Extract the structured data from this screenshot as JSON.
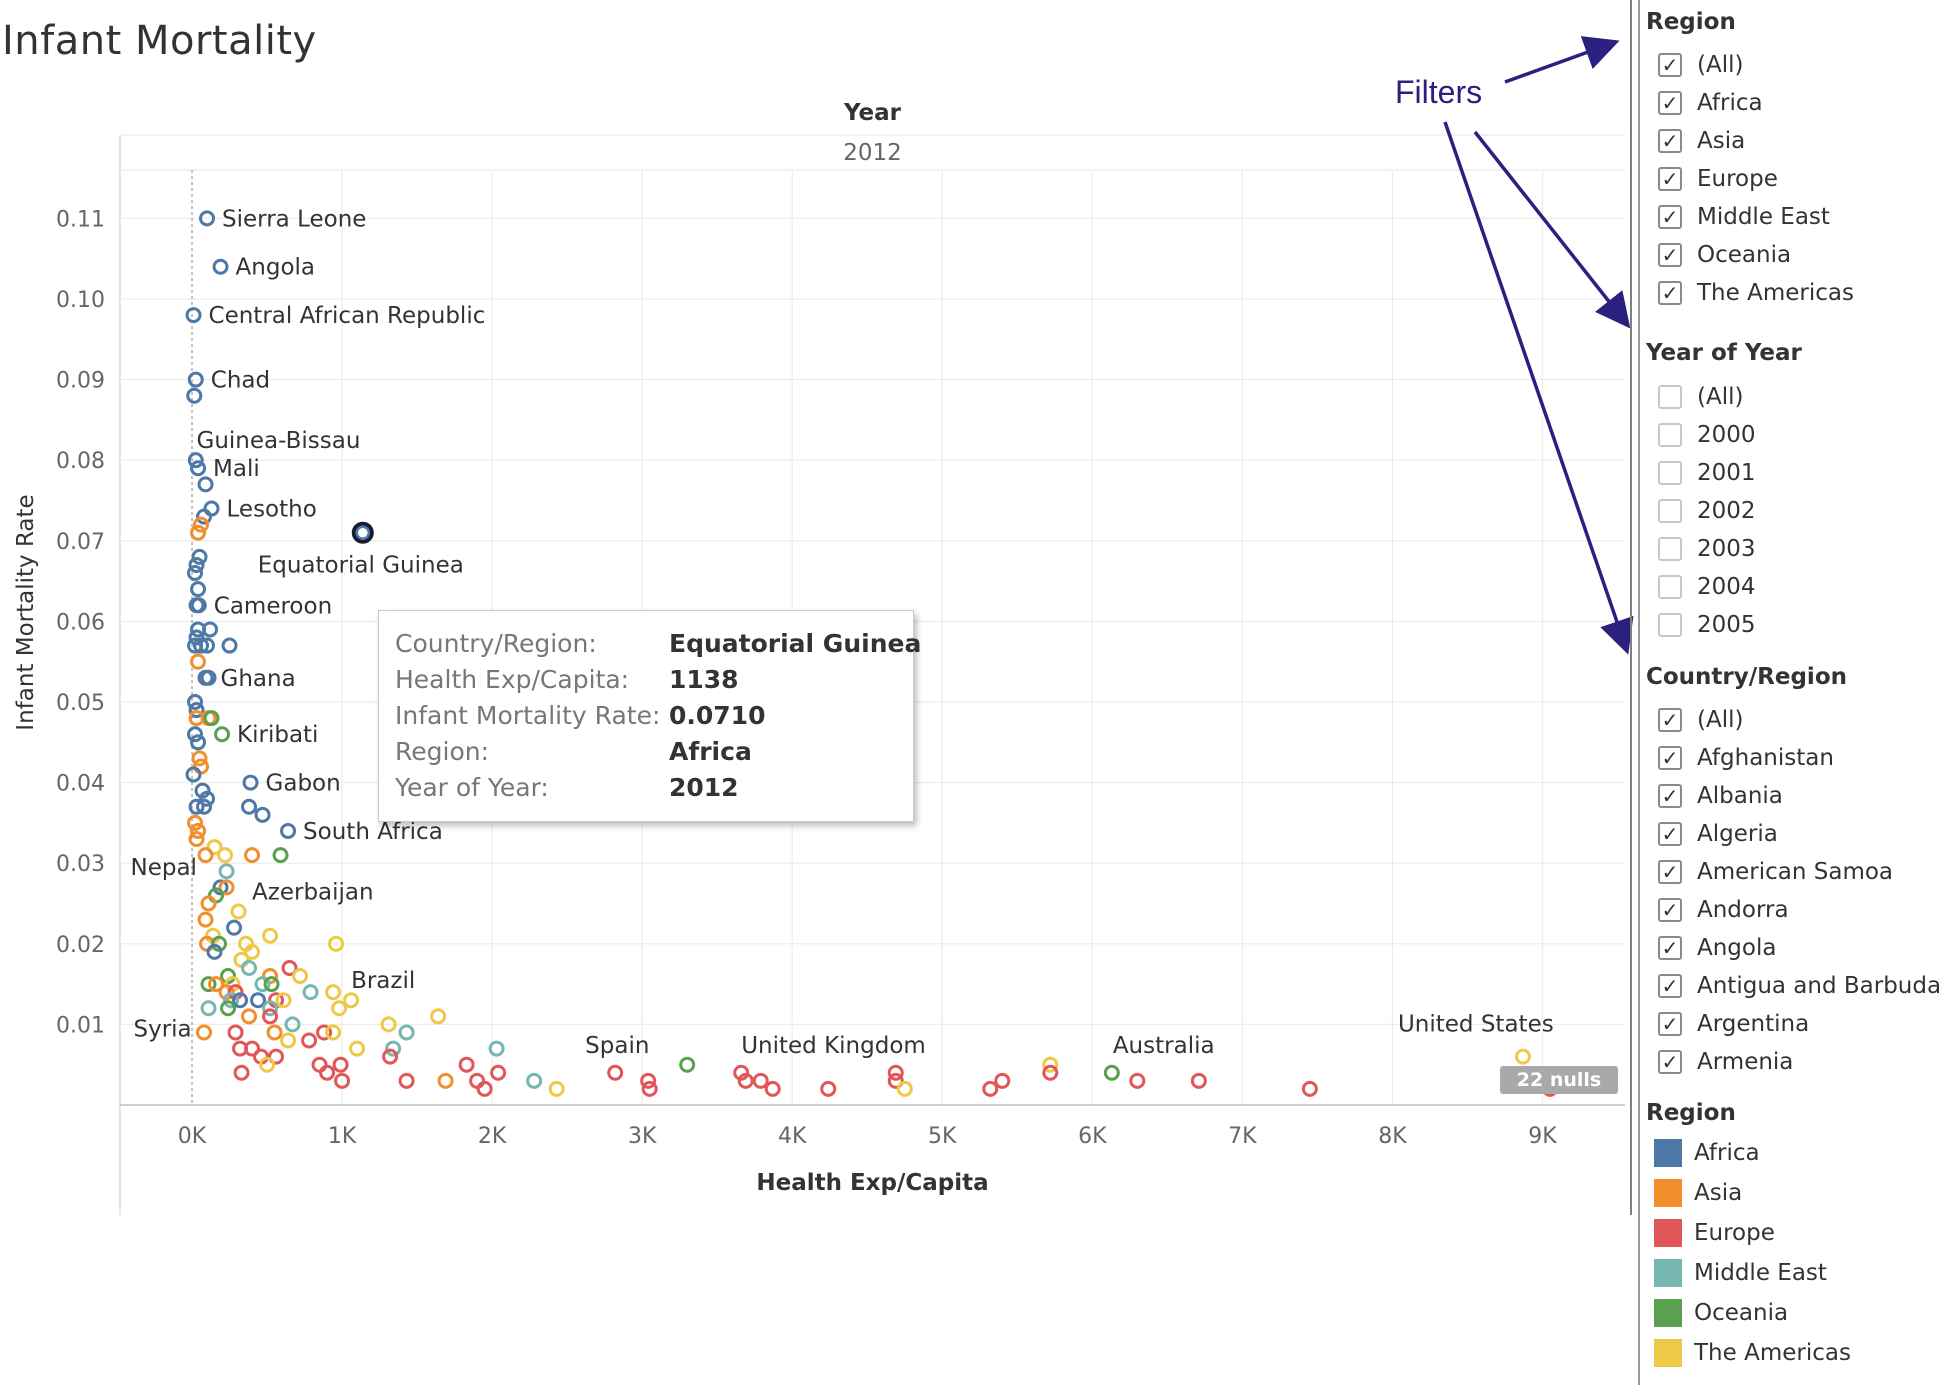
{
  "title": "Infant Mortality",
  "chart_data": {
    "type": "scatter",
    "column_header": "Year",
    "column_value": "2012",
    "xlabel": "Health Exp/Capita",
    "ylabel": "Infant Mortality Rate",
    "xlim": [
      -480,
      9550
    ],
    "ylim": [
      0,
      0.116
    ],
    "x_ticks": [
      {
        "v": 0,
        "label": "0K"
      },
      {
        "v": 1000,
        "label": "1K"
      },
      {
        "v": 2000,
        "label": "2K"
      },
      {
        "v": 3000,
        "label": "3K"
      },
      {
        "v": 4000,
        "label": "4K"
      },
      {
        "v": 5000,
        "label": "5K"
      },
      {
        "v": 6000,
        "label": "6K"
      },
      {
        "v": 7000,
        "label": "7K"
      },
      {
        "v": 8000,
        "label": "8K"
      },
      {
        "v": 9000,
        "label": "9K"
      }
    ],
    "y_ticks": [
      {
        "v": 0.01,
        "label": "0.01"
      },
      {
        "v": 0.02,
        "label": "0.02"
      },
      {
        "v": 0.03,
        "label": "0.03"
      },
      {
        "v": 0.04,
        "label": "0.04"
      },
      {
        "v": 0.05,
        "label": "0.05"
      },
      {
        "v": 0.06,
        "label": "0.06"
      },
      {
        "v": 0.07,
        "label": "0.07"
      },
      {
        "v": 0.08,
        "label": "0.08"
      },
      {
        "v": 0.09,
        "label": "0.09"
      },
      {
        "v": 0.1,
        "label": "0.10"
      },
      {
        "v": 0.11,
        "label": "0.11"
      }
    ],
    "grid": true,
    "marker": "open-circle",
    "series_colors": {
      "Africa": "#4e79a7",
      "Asia": "#f28e2b",
      "Europe": "#e15759",
      "Middle East": "#76b7b2",
      "Oceania": "#59a14f",
      "The Americas": "#edc948"
    },
    "points": [
      {
        "x": 100,
        "y": 0.11,
        "r": "Africa",
        "label": "Sierra Leone"
      },
      {
        "x": 190,
        "y": 0.104,
        "r": "Africa",
        "label": "Angola"
      },
      {
        "x": 10,
        "y": 0.098,
        "r": "Africa",
        "label": "Central African Republic"
      },
      {
        "x": 25,
        "y": 0.09,
        "r": "Africa",
        "label": "Chad"
      },
      {
        "x": 15,
        "y": 0.088,
        "r": "Africa"
      },
      {
        "x": 25,
        "y": 0.08,
        "r": "Africa"
      },
      {
        "x": 40,
        "y": 0.079,
        "r": "Africa",
        "label": "Mali"
      },
      {
        "x": 90,
        "y": 0.077,
        "r": "Africa"
      },
      {
        "x": 130,
        "y": 0.074,
        "r": "Africa",
        "label": "Lesotho"
      },
      {
        "x": 80,
        "y": 0.073,
        "r": "Africa"
      },
      {
        "x": 40,
        "y": 0.071,
        "r": "Asia"
      },
      {
        "x": 60,
        "y": 0.072,
        "r": "Asia"
      },
      {
        "x": 1138,
        "y": 0.071,
        "r": "Africa",
        "label": "Equatorial Guinea",
        "selected": true
      },
      {
        "x": 50,
        "y": 0.068,
        "r": "Africa"
      },
      {
        "x": 30,
        "y": 0.067,
        "r": "Africa"
      },
      {
        "x": 20,
        "y": 0.066,
        "r": "Africa"
      },
      {
        "x": 40,
        "y": 0.064,
        "r": "Africa"
      },
      {
        "x": 45,
        "y": 0.062,
        "r": "Africa",
        "label": "Cameroon"
      },
      {
        "x": 30,
        "y": 0.062,
        "r": "Africa"
      },
      {
        "x": 40,
        "y": 0.059,
        "r": "Africa"
      },
      {
        "x": 120,
        "y": 0.059,
        "r": "Africa"
      },
      {
        "x": 30,
        "y": 0.058,
        "r": "Africa"
      },
      {
        "x": 20,
        "y": 0.057,
        "r": "Africa"
      },
      {
        "x": 60,
        "y": 0.057,
        "r": "Africa"
      },
      {
        "x": 100,
        "y": 0.057,
        "r": "Africa"
      },
      {
        "x": 250,
        "y": 0.057,
        "r": "Africa"
      },
      {
        "x": 40,
        "y": 0.055,
        "r": "Asia"
      },
      {
        "x": 90,
        "y": 0.053,
        "r": "Africa",
        "label": "Ghana"
      },
      {
        "x": 110,
        "y": 0.053,
        "r": "Africa"
      },
      {
        "x": 20,
        "y": 0.05,
        "r": "Africa"
      },
      {
        "x": 30,
        "y": 0.049,
        "r": "Africa"
      },
      {
        "x": 30,
        "y": 0.048,
        "r": "Asia"
      },
      {
        "x": 110,
        "y": 0.048,
        "r": "Asia"
      },
      {
        "x": 130,
        "y": 0.048,
        "r": "Oceania"
      },
      {
        "x": 20,
        "y": 0.046,
        "r": "Africa"
      },
      {
        "x": 200,
        "y": 0.046,
        "r": "Oceania",
        "label": "Kiribati"
      },
      {
        "x": 40,
        "y": 0.045,
        "r": "Africa"
      },
      {
        "x": 50,
        "y": 0.043,
        "r": "Asia"
      },
      {
        "x": 60,
        "y": 0.042,
        "r": "Asia"
      },
      {
        "x": 10,
        "y": 0.041,
        "r": "Africa"
      },
      {
        "x": 390,
        "y": 0.04,
        "r": "Africa",
        "label": "Gabon"
      },
      {
        "x": 70,
        "y": 0.039,
        "r": "Africa"
      },
      {
        "x": 100,
        "y": 0.038,
        "r": "Africa"
      },
      {
        "x": 30,
        "y": 0.037,
        "r": "Africa"
      },
      {
        "x": 80,
        "y": 0.037,
        "r": "Africa"
      },
      {
        "x": 380,
        "y": 0.037,
        "r": "Africa"
      },
      {
        "x": 470,
        "y": 0.036,
        "r": "Africa"
      },
      {
        "x": 20,
        "y": 0.035,
        "r": "Asia"
      },
      {
        "x": 40,
        "y": 0.034,
        "r": "Asia"
      },
      {
        "x": 640,
        "y": 0.034,
        "r": "Africa",
        "label": "South Africa"
      },
      {
        "x": 30,
        "y": 0.033,
        "r": "Asia"
      },
      {
        "x": 150,
        "y": 0.032,
        "r": "The Americas"
      },
      {
        "x": 90,
        "y": 0.031,
        "r": "Asia"
      },
      {
        "x": 400,
        "y": 0.031,
        "r": "Asia"
      },
      {
        "x": 590,
        "y": 0.031,
        "r": "Oceania"
      },
      {
        "x": 220,
        "y": 0.031,
        "r": "The Americas"
      },
      {
        "x": 230,
        "y": 0.029,
        "r": "Middle East"
      },
      {
        "x": 190,
        "y": 0.027,
        "r": "Africa"
      },
      {
        "x": 230,
        "y": 0.027,
        "r": "Asia"
      },
      {
        "x": 160,
        "y": 0.026,
        "r": "Oceania"
      },
      {
        "x": 110,
        "y": 0.025,
        "r": "Asia"
      },
      {
        "x": 310,
        "y": 0.024,
        "r": "The Americas"
      },
      {
        "x": 90,
        "y": 0.023,
        "r": "Asia"
      },
      {
        "x": 280,
        "y": 0.022,
        "r": "Africa"
      },
      {
        "x": 140,
        "y": 0.021,
        "r": "The Americas"
      },
      {
        "x": 520,
        "y": 0.021,
        "r": "The Americas"
      },
      {
        "x": 100,
        "y": 0.02,
        "r": "Asia"
      },
      {
        "x": 180,
        "y": 0.02,
        "r": "Oceania"
      },
      {
        "x": 360,
        "y": 0.02,
        "r": "The Americas"
      },
      {
        "x": 960,
        "y": 0.02,
        "r": "The Americas"
      },
      {
        "x": 150,
        "y": 0.019,
        "r": "Africa"
      },
      {
        "x": 400,
        "y": 0.019,
        "r": "The Americas"
      },
      {
        "x": 330,
        "y": 0.018,
        "r": "The Americas"
      },
      {
        "x": 380,
        "y": 0.017,
        "r": "Middle East"
      },
      {
        "x": 650,
        "y": 0.017,
        "r": "Europe"
      },
      {
        "x": 240,
        "y": 0.016,
        "r": "Oceania"
      },
      {
        "x": 520,
        "y": 0.016,
        "r": "Asia"
      },
      {
        "x": 720,
        "y": 0.016,
        "r": "The Americas"
      },
      {
        "x": 110,
        "y": 0.015,
        "r": "Oceania"
      },
      {
        "x": 160,
        "y": 0.015,
        "r": "Asia"
      },
      {
        "x": 270,
        "y": 0.015,
        "r": "The Americas"
      },
      {
        "x": 470,
        "y": 0.015,
        "r": "Middle East"
      },
      {
        "x": 530,
        "y": 0.015,
        "r": "Oceania"
      },
      {
        "x": 230,
        "y": 0.014,
        "r": "Asia"
      },
      {
        "x": 290,
        "y": 0.014,
        "r": "Europe"
      },
      {
        "x": 790,
        "y": 0.014,
        "r": "Middle East"
      },
      {
        "x": 940,
        "y": 0.014,
        "r": "The Americas"
      },
      {
        "x": 260,
        "y": 0.013,
        "r": "Middle East"
      },
      {
        "x": 320,
        "y": 0.013,
        "r": "Africa"
      },
      {
        "x": 440,
        "y": 0.013,
        "r": "Africa"
      },
      {
        "x": 560,
        "y": 0.013,
        "r": "Europe"
      },
      {
        "x": 610,
        "y": 0.013,
        "r": "The Americas"
      },
      {
        "x": 1060,
        "y": 0.013,
        "r": "The Americas"
      },
      {
        "x": 110,
        "y": 0.012,
        "r": "Middle East"
      },
      {
        "x": 240,
        "y": 0.012,
        "r": "Oceania"
      },
      {
        "x": 520,
        "y": 0.012,
        "r": "Middle East"
      },
      {
        "x": 980,
        "y": 0.012,
        "r": "The Americas"
      },
      {
        "x": 380,
        "y": 0.011,
        "r": "Asia"
      },
      {
        "x": 520,
        "y": 0.011,
        "r": "Europe"
      },
      {
        "x": 1640,
        "y": 0.011,
        "r": "The Americas"
      },
      {
        "x": 670,
        "y": 0.01,
        "r": "Middle East"
      },
      {
        "x": 1310,
        "y": 0.01,
        "r": "The Americas"
      },
      {
        "x": 80,
        "y": 0.009,
        "r": "Asia"
      },
      {
        "x": 290,
        "y": 0.009,
        "r": "Europe"
      },
      {
        "x": 550,
        "y": 0.009,
        "r": "Asia"
      },
      {
        "x": 880,
        "y": 0.009,
        "r": "Europe"
      },
      {
        "x": 940,
        "y": 0.009,
        "r": "The Americas"
      },
      {
        "x": 1430,
        "y": 0.009,
        "r": "Middle East"
      },
      {
        "x": 640,
        "y": 0.008,
        "r": "The Americas"
      },
      {
        "x": 780,
        "y": 0.008,
        "r": "Europe"
      },
      {
        "x": 320,
        "y": 0.007,
        "r": "Europe"
      },
      {
        "x": 400,
        "y": 0.007,
        "r": "Europe"
      },
      {
        "x": 1100,
        "y": 0.007,
        "r": "The Americas"
      },
      {
        "x": 1340,
        "y": 0.007,
        "r": "Middle East"
      },
      {
        "x": 2030,
        "y": 0.007,
        "r": "Middle East"
      },
      {
        "x": 460,
        "y": 0.006,
        "r": "Europe"
      },
      {
        "x": 560,
        "y": 0.006,
        "r": "Europe"
      },
      {
        "x": 1320,
        "y": 0.006,
        "r": "Europe"
      },
      {
        "x": 500,
        "y": 0.005,
        "r": "The Americas"
      },
      {
        "x": 850,
        "y": 0.005,
        "r": "Europe"
      },
      {
        "x": 990,
        "y": 0.005,
        "r": "Europe"
      },
      {
        "x": 1830,
        "y": 0.005,
        "r": "Europe"
      },
      {
        "x": 3300,
        "y": 0.005,
        "r": "Oceania"
      },
      {
        "x": 5720,
        "y": 0.005,
        "r": "The Americas"
      },
      {
        "x": 330,
        "y": 0.004,
        "r": "Europe"
      },
      {
        "x": 900,
        "y": 0.004,
        "r": "Europe"
      },
      {
        "x": 2040,
        "y": 0.004,
        "r": "Europe"
      },
      {
        "x": 2820,
        "y": 0.004,
        "r": "Europe",
        "label": "Spain"
      },
      {
        "x": 3660,
        "y": 0.004,
        "r": "Europe",
        "label": "United Kingdom"
      },
      {
        "x": 4690,
        "y": 0.004,
        "r": "Europe"
      },
      {
        "x": 5720,
        "y": 0.004,
        "r": "Europe"
      },
      {
        "x": 6130,
        "y": 0.004,
        "r": "Oceania",
        "label": "Australia"
      },
      {
        "x": 1000,
        "y": 0.003,
        "r": "Europe"
      },
      {
        "x": 1430,
        "y": 0.003,
        "r": "Europe"
      },
      {
        "x": 1690,
        "y": 0.003,
        "r": "Asia"
      },
      {
        "x": 1900,
        "y": 0.003,
        "r": "Europe"
      },
      {
        "x": 2280,
        "y": 0.003,
        "r": "Middle East"
      },
      {
        "x": 3040,
        "y": 0.003,
        "r": "Europe"
      },
      {
        "x": 3690,
        "y": 0.003,
        "r": "Europe"
      },
      {
        "x": 3790,
        "y": 0.003,
        "r": "Europe"
      },
      {
        "x": 4690,
        "y": 0.003,
        "r": "Europe"
      },
      {
        "x": 5400,
        "y": 0.003,
        "r": "Europe"
      },
      {
        "x": 6300,
        "y": 0.003,
        "r": "Europe"
      },
      {
        "x": 6710,
        "y": 0.003,
        "r": "Europe"
      },
      {
        "x": 1950,
        "y": 0.002,
        "r": "Europe"
      },
      {
        "x": 2430,
        "y": 0.002,
        "r": "The Americas"
      },
      {
        "x": 3050,
        "y": 0.002,
        "r": "Europe"
      },
      {
        "x": 3870,
        "y": 0.002,
        "r": "Europe"
      },
      {
        "x": 4240,
        "y": 0.002,
        "r": "Europe"
      },
      {
        "x": 4750,
        "y": 0.002,
        "r": "The Americas"
      },
      {
        "x": 5320,
        "y": 0.002,
        "r": "Europe"
      },
      {
        "x": 7450,
        "y": 0.002,
        "r": "Europe"
      },
      {
        "x": 8870,
        "y": 0.006,
        "r": "The Americas",
        "label": "United States"
      },
      {
        "x": 9050,
        "y": 0.002,
        "r": "Europe"
      }
    ],
    "free_labels": [
      {
        "text": "Guinea-Bissau",
        "x": 30,
        "y": 0.0825
      },
      {
        "text": "Nepal",
        "x": -410,
        "y": 0.0295
      },
      {
        "text": "Azerbaijan",
        "x": 400,
        "y": 0.0265
      },
      {
        "text": "Brazil",
        "x": 1060,
        "y": 0.0155
      },
      {
        "text": "Syria",
        "x": -390,
        "y": 0.0095
      }
    ],
    "nulls_badge": "22 nulls"
  },
  "tooltip": {
    "rows": [
      {
        "key": "Country/Region:",
        "value": "Equatorial Guinea"
      },
      {
        "key": "Health Exp/Capita:",
        "value": "1138"
      },
      {
        "key": "Infant Mortality Rate:",
        "value": "0.0710"
      },
      {
        "key": "Region:",
        "value": "Africa"
      },
      {
        "key": "Year of Year:",
        "value": "2012"
      }
    ]
  },
  "annotation": {
    "text": "Filters",
    "color": "#2b2080"
  },
  "filters": {
    "region": {
      "title": "Region",
      "items": [
        {
          "label": "(All)",
          "checked": true
        },
        {
          "label": "Africa",
          "checked": true
        },
        {
          "label": "Asia",
          "checked": true
        },
        {
          "label": "Europe",
          "checked": true
        },
        {
          "label": "Middle East",
          "checked": true
        },
        {
          "label": "Oceania",
          "checked": true
        },
        {
          "label": "The Americas",
          "checked": true
        }
      ]
    },
    "year": {
      "title": "Year of Year",
      "items": [
        {
          "label": "(All)",
          "checked": false
        },
        {
          "label": "2000",
          "checked": false
        },
        {
          "label": "2001",
          "checked": false
        },
        {
          "label": "2002",
          "checked": false
        },
        {
          "label": "2003",
          "checked": false
        },
        {
          "label": "2004",
          "checked": false
        },
        {
          "label": "2005",
          "checked": false
        }
      ]
    },
    "country": {
      "title": "Country/Region",
      "items": [
        {
          "label": "(All)",
          "checked": true
        },
        {
          "label": "Afghanistan",
          "checked": true
        },
        {
          "label": "Albania",
          "checked": true
        },
        {
          "label": "Algeria",
          "checked": true
        },
        {
          "label": "American Samoa",
          "checked": true
        },
        {
          "label": "Andorra",
          "checked": true
        },
        {
          "label": "Angola",
          "checked": true
        },
        {
          "label": "Antigua and Barbuda",
          "checked": true
        },
        {
          "label": "Argentina",
          "checked": true
        },
        {
          "label": "Armenia",
          "checked": true
        }
      ]
    }
  },
  "legend": {
    "title": "Region",
    "items": [
      {
        "label": "Africa",
        "color": "#4e79a7"
      },
      {
        "label": "Asia",
        "color": "#f28e2b"
      },
      {
        "label": "Europe",
        "color": "#e15759"
      },
      {
        "label": "Middle East",
        "color": "#76b7b2"
      },
      {
        "label": "Oceania",
        "color": "#59a14f"
      },
      {
        "label": "The Americas",
        "color": "#edc948"
      }
    ]
  }
}
